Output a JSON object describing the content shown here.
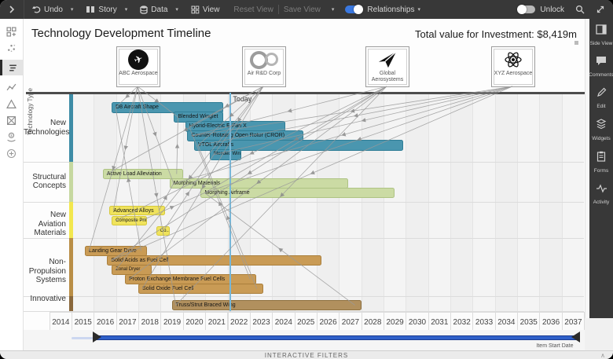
{
  "topbar": {
    "expand_chevron_icon": "chevron-right-icon",
    "undo_label": "Undo",
    "story_label": "Story",
    "data_label": "Data",
    "view_label": "View",
    "reset_view_label": "Reset View",
    "save_view_label": "Save View",
    "relationships_label": "Relationships",
    "relationships_on": true,
    "unlock_label": "Unlock",
    "unlock_on": false,
    "icons": [
      "undo-icon",
      "story-book-icon",
      "data-database-icon",
      "view-grid-icon",
      "search-icon",
      "fullscreen-expand-icon"
    ]
  },
  "header": {
    "title": "Technology Development Timeline",
    "total_value": "Total value for Investment: $8,419m"
  },
  "left_toolbar": {
    "icons": [
      "widget-grid-icon",
      "scatter-view-icon",
      "timeline-view-icon",
      "trend-view-icon",
      "triangle-view-icon",
      "canvas-view-icon",
      "investment-view-icon",
      "add-view-icon"
    ],
    "selected_index": 2
  },
  "right_sidebar": {
    "items": [
      {
        "icon": "side-view-icon",
        "label": "Side View"
      },
      {
        "icon": "comments-icon",
        "label": "Comments"
      },
      {
        "icon": "edit-pencil-icon",
        "label": "Edit"
      },
      {
        "icon": "widgets-layers-icon",
        "label": "Widgets"
      },
      {
        "icon": "forms-clipboard-icon",
        "label": "Forms"
      },
      {
        "icon": "activity-pulse-icon",
        "label": "Activity"
      }
    ]
  },
  "logos": [
    {
      "label": "ABC Aerospace",
      "icon": "plane-circle-icon"
    },
    {
      "label": "Air R&D Corp",
      "icon": "turbine-rings-icon"
    },
    {
      "label": "Global Aerosystems",
      "icon": "paper-plane-icon"
    },
    {
      "label": "XYZ Aerospace",
      "icon": "atom-icon"
    }
  ],
  "chart_data": {
    "type": "bar",
    "variant": "gantt-timeline",
    "title": "Technology Development Timeline",
    "y_axis_label": "Technology Type",
    "x_ticks": [
      2014,
      2015,
      2016,
      2017,
      2018,
      2019,
      2020,
      2021,
      2022,
      2023,
      2024,
      2025,
      2026,
      2027,
      2028,
      2029,
      2030,
      2031,
      2032,
      2033,
      2034,
      2035,
      2036,
      2037
    ],
    "today": 2022.1,
    "today_label": "Today",
    "categories": [
      {
        "label": "New Technologies",
        "fill": "#4A96AF",
        "border": "#2F7D96",
        "stripe": "#3E8CA6",
        "bars": [
          {
            "label": "D8 Aircraft Shape",
            "start": 2016.8,
            "end": 2021.8
          },
          {
            "label": "Blended Winglet",
            "start": 2019.6,
            "end": 2021.8
          },
          {
            "label": "Hybrid-Electric E-Fan X",
            "start": 2020.1,
            "end": 2024.6
          },
          {
            "label": "Counter-Rotating Open Rotor (CROR)",
            "start": 2020.2,
            "end": 2025.4
          },
          {
            "label": "VTOL Aircrafts",
            "start": 2020.5,
            "end": 2029.9
          },
          {
            "label": "Blended Wing-Body",
            "start": 2021.2,
            "end": 2022.6
          }
        ]
      },
      {
        "label": "Structural Concepts",
        "fill": "#CBDBA4",
        "border": "#AEC384",
        "stripe": "#C6D8A0",
        "bars": [
          {
            "label": "Active Load Alleviation",
            "start": 2016.4,
            "end": 2020.0
          },
          {
            "label": "Morphing Materials",
            "start": 2019.4,
            "end": 2027.4
          },
          {
            "label": "Morphing Airframe",
            "start": 2020.8,
            "end": 2029.5
          }
        ]
      },
      {
        "label": "New Aviation Materials",
        "fill": "#F0E35C",
        "border": "#D6C93E",
        "stripe": "#F2E74E",
        "bars": [
          {
            "label": "Advanced Alloys",
            "start": 2016.7,
            "end": 2019.2
          },
          {
            "label": "Composite Primary..",
            "start": 2016.8,
            "end": 2018.4
          },
          {
            "label": "Co..",
            "start": 2018.8,
            "end": 2019.4
          }
        ]
      },
      {
        "label": "Non-Propulsion Systems",
        "fill": "#C99B55",
        "border": "#AA7F3C",
        "stripe": "#B98E46",
        "bars": [
          {
            "label": "Landing Gear Drive",
            "start": 2015.6,
            "end": 2018.4
          },
          {
            "label": "Solid Acids as Fuel Cell",
            "start": 2016.6,
            "end": 2026.2
          },
          {
            "label": "Zonal Dryer",
            "start": 2016.8,
            "end": 2018.6
          },
          {
            "label": "Proton Exchange Membrane Fuel Cells",
            "start": 2017.4,
            "end": 2023.3
          },
          {
            "label": "Solid Oxide Fuel Cell",
            "start": 2018.0,
            "end": 2023.6
          }
        ]
      },
      {
        "label": "Innovative",
        "fill": "#B1905E",
        "border": "#8F7140",
        "stripe": "#8A683C",
        "bars": [
          {
            "label": "Truss/Strut Braced Wing",
            "start": 2019.5,
            "end": 2028.0
          }
        ]
      }
    ]
  },
  "relationships": [
    {
      "from": "ABC Aerospace",
      "to": "D8 Aircraft Shape"
    },
    {
      "from": "ABC Aerospace",
      "to": "Blended Winglet"
    },
    {
      "from": "ABC Aerospace",
      "to": "Advanced Alloys"
    },
    {
      "from": "ABC Aerospace",
      "to": "Landing Gear Drive"
    },
    {
      "from": "ABC Aerospace",
      "to": "Morphing Materials"
    },
    {
      "from": "ABC Aerospace",
      "to": "Truss/Strut Braced Wing"
    },
    {
      "from": "Air R&D Corp",
      "to": "Hybrid-Electric E-Fan X"
    },
    {
      "from": "Air R&D Corp",
      "to": "VTOL Aircrafts"
    },
    {
      "from": "Air R&D Corp",
      "to": "Blended Wing-Body"
    },
    {
      "from": "Air R&D Corp",
      "to": "Zonal Dryer"
    },
    {
      "from": "Air R&D Corp",
      "to": "Solid Oxide Fuel Cell"
    },
    {
      "from": "Air R&D Corp",
      "to": "Active Load Alleviation"
    },
    {
      "from": "Global Aerosystems",
      "to": "Counter-Rotating Open Rotor (CROR)"
    },
    {
      "from": "Global Aerosystems",
      "to": "Morphing Airframe"
    },
    {
      "from": "Global Aerosystems",
      "to": "Solid Acids as Fuel Cell"
    },
    {
      "from": "Global Aerosystems",
      "to": "Proton Exchange Membrane Fuel Cells"
    },
    {
      "from": "Global Aerosystems",
      "to": "Composite Primary.."
    },
    {
      "from": "Global Aerosystems",
      "to": "Truss/Strut Braced Wing"
    },
    {
      "from": "XYZ Aerospace",
      "to": "VTOL Aircrafts"
    },
    {
      "from": "XYZ Aerospace",
      "to": "Morphing Airframe"
    },
    {
      "from": "XYZ Aerospace",
      "to": "Morphing Materials"
    },
    {
      "from": "XYZ Aerospace",
      "to": "Solid Acids as Fuel Cell"
    },
    {
      "from": "XYZ Aerospace",
      "to": "Blended Wing-Body"
    },
    {
      "from": "XYZ Aerospace",
      "to": "Counter-Rotating Open Rotor (CROR)"
    },
    {
      "from": "Advanced Alloys",
      "to": "Morphing Materials"
    },
    {
      "from": "Composite Primary..",
      "to": "Morphing Airframe"
    },
    {
      "from": "Co..",
      "to": "Blended Wing-Body"
    },
    {
      "from": "Solid Oxide Fuel Cell",
      "to": "VTOL Aircrafts"
    },
    {
      "from": "Landing Gear Drive",
      "to": "D8 Aircraft Shape"
    },
    {
      "from": "Proton Exchange Membrane Fuel Cells",
      "to": "Hybrid-Electric E-Fan X"
    },
    {
      "from": "Active Load Alleviation",
      "to": "Blended Winglet"
    },
    {
      "from": "Truss/Strut Braced Wing",
      "to": "Morphing Airframe"
    }
  ],
  "slider": {
    "label": "Item Start Date",
    "min_year": 2014,
    "max_year": 2038,
    "selected_start_year": 2016,
    "selected_end_year": 2037.8
  },
  "footer": {
    "label": "INTERACTIVE FILTERS",
    "collapse_icon": "chevron-up-icon"
  },
  "colors": {
    "topbar_bg": "#383838",
    "accent_toggle_blue": "#3a78e0",
    "slider_blue": "#2e5fc8",
    "today_line": "#76b7d9",
    "relationship_line": "#9a9a9a"
  }
}
